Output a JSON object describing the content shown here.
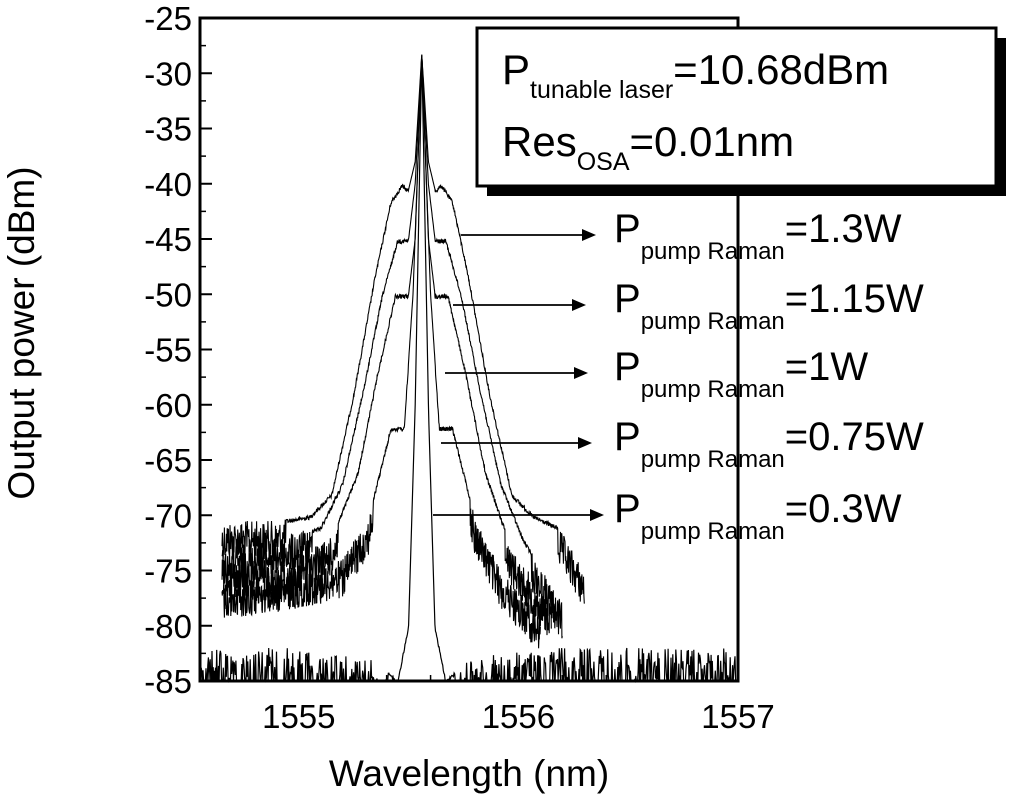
{
  "chart_data": {
    "type": "line",
    "title": "",
    "xlabel": "Wavelength (nm)",
    "ylabel": "Output power (dBm)",
    "xlim": [
      1554.55,
      1557.0
    ],
    "ylim": [
      -85,
      -25
    ],
    "xticks": [
      1555,
      1556,
      1557
    ],
    "xtick_labels": [
      "1555",
      "1556",
      "1557"
    ],
    "yticks": [
      -25,
      -30,
      -35,
      -40,
      -45,
      -50,
      -55,
      -60,
      -65,
      -70,
      -75,
      -80,
      -85
    ],
    "ytick_labels": [
      "-25",
      "-30",
      "-35",
      "-40",
      "-45",
      "-50",
      "-55",
      "-60",
      "-65",
      "-70",
      "-75",
      "-80",
      "-85"
    ],
    "grid": false,
    "center_wavelength": 1555.56,
    "peak_power": -28.3,
    "info_box": {
      "line1": {
        "main": "P",
        "sub": "tunable laser",
        "value": "=10.68dBm"
      },
      "line2": {
        "main": "Res",
        "sub": "OSA",
        "value": "=0.01nm"
      }
    },
    "series": [
      {
        "name": "P pump Raman =1.3W",
        "label_main": "P",
        "label_sub1": "pump",
        "label_sub2": "Raman",
        "label_value": "=1.3W",
        "shoulder_level": -40,
        "half_width_nm": 0.62,
        "floor_level": -70.5,
        "x": [
          1554.65,
          1554.9,
          1555.05,
          1555.15,
          1555.25,
          1555.35,
          1555.42,
          1555.47,
          1555.5,
          1555.53,
          1555.56,
          1555.59,
          1555.62,
          1555.65,
          1555.7,
          1555.77,
          1555.87,
          1555.97,
          1556.07,
          1556.18,
          1556.3
        ],
        "y": [
          -70.5,
          -70.5,
          -70,
          -68,
          -59,
          -48,
          -41.5,
          -40,
          -40.5,
          -38,
          -28.3,
          -38,
          -40.5,
          -40,
          -41.5,
          -48,
          -59,
          -68,
          -70,
          -71,
          -75
        ]
      },
      {
        "name": "P pump Raman =1.15W",
        "label_main": "P",
        "label_sub1": "pump",
        "label_sub2": "Raman",
        "label_value": "=1.15W",
        "shoulder_level": -45,
        "half_width_nm": 0.5,
        "x": [
          1554.65,
          1554.9,
          1555.1,
          1555.2,
          1555.3,
          1555.38,
          1555.45,
          1555.5,
          1555.53,
          1555.56,
          1555.59,
          1555.62,
          1555.67,
          1555.74,
          1555.82,
          1555.92,
          1556.02,
          1556.2
        ],
        "y": [
          -73,
          -72,
          -71,
          -67,
          -58,
          -50,
          -45,
          -45,
          -40,
          -28.3,
          -40,
          -45,
          -45,
          -50,
          -58,
          -67,
          -72,
          -78
        ]
      },
      {
        "name": "P pump Raman =1W",
        "label_main": "P",
        "label_sub1": "pump",
        "label_sub2": "Raman",
        "label_value": "=1W",
        "shoulder_level": -50,
        "half_width_nm": 0.38,
        "x": [
          1554.65,
          1554.95,
          1555.15,
          1555.27,
          1555.36,
          1555.44,
          1555.5,
          1555.53,
          1555.56,
          1555.59,
          1555.62,
          1555.68,
          1555.76,
          1555.85,
          1555.97,
          1556.15
        ],
        "y": [
          -74,
          -74,
          -72,
          -66,
          -57,
          -50,
          -50,
          -45,
          -28.3,
          -45,
          -50,
          -50,
          -57,
          -66,
          -73,
          -78
        ]
      },
      {
        "name": "P pump Raman =0.75W",
        "label_main": "P",
        "label_sub1": "pump",
        "label_sub2": "Raman",
        "label_value": "=0.75W",
        "shoulder_level": -62,
        "half_width_nm": 0.22,
        "x": [
          1554.65,
          1555.0,
          1555.2,
          1555.32,
          1555.42,
          1555.48,
          1555.52,
          1555.56,
          1555.6,
          1555.64,
          1555.7,
          1555.8,
          1555.92,
          1556.1
        ],
        "y": [
          -76,
          -75,
          -74,
          -70,
          -62,
          -62,
          -50,
          -28.3,
          -50,
          -62,
          -62,
          -70,
          -75,
          -79
        ]
      },
      {
        "name": "P pump Raman =0.3W",
        "label_main": "P",
        "label_sub1": "pump",
        "label_sub2": "Raman",
        "label_value": "=0.3W",
        "shoulder_level": -70,
        "half_width_nm": 0.1,
        "x": [
          1554.55,
          1555.0,
          1555.35,
          1555.45,
          1555.5,
          1555.53,
          1555.56,
          1555.59,
          1555.62,
          1555.67,
          1555.77,
          1556.1,
          1557.0
        ],
        "y": [
          -82,
          -82,
          -83,
          -85,
          -80,
          -60,
          -28.3,
          -60,
          -80,
          -85,
          -83,
          -82,
          -82
        ]
      }
    ]
  }
}
